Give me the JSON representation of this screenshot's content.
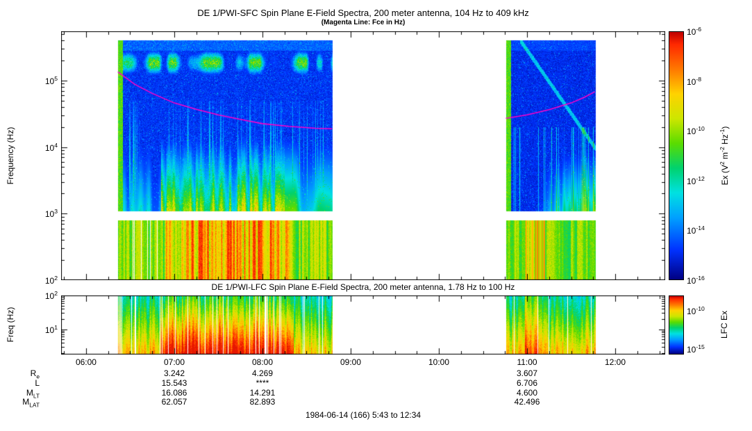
{
  "footer": "1984-06-14 (166) 5:43 to 12:34",
  "ephemeris": {
    "columns_hours": [
      7,
      8,
      11
    ],
    "rows": [
      {
        "base": "R",
        "sub": "e",
        "values": [
          "3.242",
          "4.269",
          "3.607"
        ]
      },
      {
        "base": "L",
        "sub": "",
        "values": [
          "15.543",
          "****",
          "6.706"
        ]
      },
      {
        "base": "M",
        "sub": "LT",
        "values": [
          "16.086",
          "14.291",
          "4.600"
        ]
      },
      {
        "base": "M",
        "sub": "LAT",
        "values": [
          "62.057",
          "82.893",
          "42.496"
        ]
      }
    ]
  },
  "chart_data": [
    {
      "type": "heatmap",
      "instrument": "DE 1/PWI-SFC",
      "title": "DE 1/PWI-SFC  Spin Plane E-Field Spectra, 200 meter antenna, 104 Hz to 409 kHz",
      "subtitle": "(Magenta Line: Fce in Hz)",
      "ylabel": "Frequency (Hz)",
      "ylim_hz": [
        100,
        409000
      ],
      "y_ticks": [
        {
          "base": "10",
          "sup": "5",
          "hz": 100000
        },
        {
          "base": "10",
          "sup": "4",
          "hz": 10000
        },
        {
          "base": "10",
          "sup": "3",
          "hz": 1000
        },
        {
          "base": "10",
          "sup": "2",
          "hz": 100
        }
      ],
      "x_start": "5:43",
      "x_end": "12:34",
      "x_start_hours": 5.7167,
      "x_end_hours": 12.5667,
      "x_ticks": [
        {
          "label": "06:00",
          "hour": 6
        },
        {
          "label": "07:00",
          "hour": 7
        },
        {
          "label": "08:00",
          "hour": 8
        },
        {
          "label": "09:00",
          "hour": 9
        },
        {
          "label": "10:00",
          "hour": 10
        },
        {
          "label": "11:00",
          "hour": 11
        },
        {
          "label": "12:00",
          "hour": 12
        }
      ],
      "data_blocks_hours": [
        [
          6.36,
          8.79
        ],
        [
          10.76,
          11.77
        ]
      ],
      "white_gap_hz": [
        810,
        1100
      ],
      "colorbar": {
        "label": "Ex (V^2 m^-2 Hz^-1)",
        "label_parts": [
          {
            "t": "Ex (V"
          },
          {
            "s": "2"
          },
          {
            "t": " m"
          },
          {
            "s": "-2"
          },
          {
            "t": " Hz"
          },
          {
            "s": "-1"
          },
          {
            "t": ")"
          }
        ],
        "ticks": [
          {
            "base": "10",
            "sup": "-6",
            "frac": 0.0
          },
          {
            "base": "10",
            "sup": "-8",
            "frac": 0.2
          },
          {
            "base": "10",
            "sup": "-10",
            "frac": 0.4
          },
          {
            "base": "10",
            "sup": "-12",
            "frac": 0.6
          },
          {
            "base": "10",
            "sup": "-14",
            "frac": 0.8
          },
          {
            "base": "10",
            "sup": "-16",
            "frac": 1.0
          }
        ]
      },
      "fce_line": {
        "color": "#ff00c8",
        "points_hours_hz": [
          [
            6.36,
            135000
          ],
          [
            6.55,
            88000
          ],
          [
            6.75,
            64000
          ],
          [
            7.0,
            46000
          ],
          [
            7.25,
            37000
          ],
          [
            7.5,
            30500
          ],
          [
            7.75,
            26000
          ],
          [
            8.0,
            22500
          ],
          [
            8.3,
            20500
          ],
          [
            8.6,
            19200
          ],
          [
            8.79,
            18800
          ],
          [
            10.76,
            27000
          ],
          [
            11.0,
            30500
          ],
          [
            11.25,
            36500
          ],
          [
            11.5,
            46000
          ],
          [
            11.65,
            56000
          ],
          [
            11.77,
            68000
          ]
        ]
      }
    },
    {
      "type": "heatmap",
      "instrument": "DE 1/PWI-LFC",
      "title": "DE 1/PWI-LFC  Spin Plane E-Field Spectra, 200 meter antenna, 1.78 Hz to 100 Hz",
      "ylabel": "Freq (Hz)",
      "ylim_hz": [
        1.78,
        100
      ],
      "y_ticks": [
        {
          "base": "10",
          "sup": "2",
          "hz": 100
        },
        {
          "base": "10",
          "sup": "1",
          "hz": 10
        }
      ],
      "data_blocks_hours": [
        [
          6.36,
          8.79
        ],
        [
          10.76,
          11.77
        ]
      ],
      "colorbar": {
        "label": "LFC Ex",
        "ticks": [
          {
            "base": "10",
            "sup": "-10",
            "frac": 0.26
          },
          {
            "base": "10",
            "sup": "-15",
            "frac": 0.9
          }
        ]
      }
    }
  ]
}
